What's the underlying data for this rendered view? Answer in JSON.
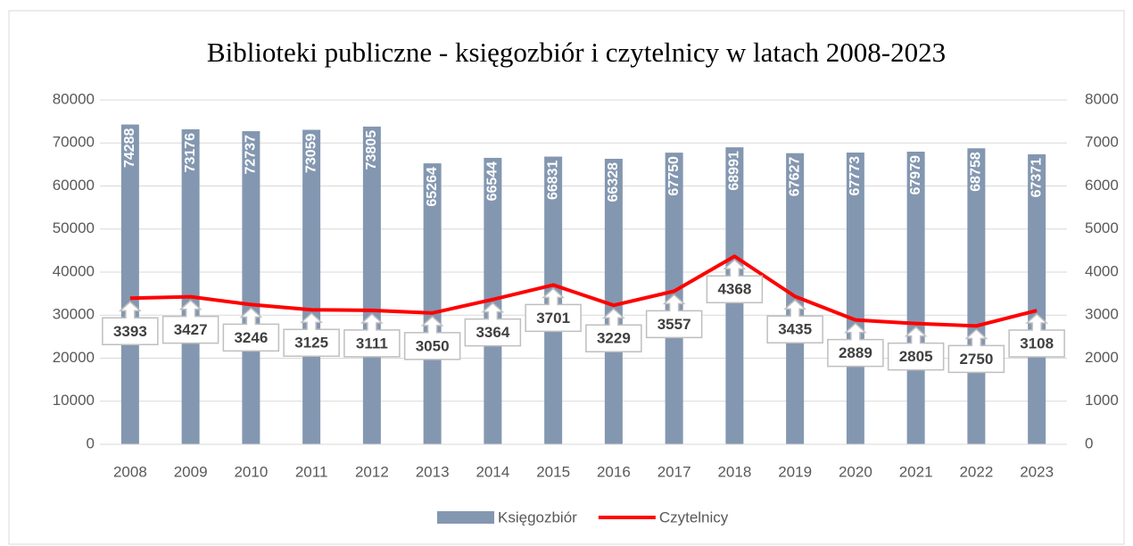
{
  "chart_data": {
    "type": "combo",
    "title": "Biblioteki publiczne - księgozbiór i czytelnicy  w latach 2008-2023",
    "categories": [
      "2008",
      "2009",
      "2010",
      "2011",
      "2012",
      "2013",
      "2014",
      "2015",
      "2016",
      "2017",
      "2018",
      "2019",
      "2020",
      "2021",
      "2022",
      "2023"
    ],
    "series": [
      {
        "name": "Księgozbiór",
        "type": "bar",
        "color": "#8497b0",
        "values": [
          74288,
          73176,
          72737,
          73059,
          73805,
          65264,
          66544,
          66831,
          66328,
          67750,
          68991,
          67627,
          67773,
          67979,
          68758,
          67371
        ]
      },
      {
        "name": "Czytelnicy",
        "type": "line",
        "color": "#ff0000",
        "axis": "y2",
        "values": [
          3393,
          3427,
          3246,
          3125,
          3111,
          3050,
          3364,
          3701,
          3229,
          3557,
          4368,
          3435,
          2889,
          2805,
          2750,
          3108
        ]
      }
    ],
    "ylim": [
      0,
      80000
    ],
    "yticks": [
      0,
      10000,
      20000,
      30000,
      40000,
      50000,
      60000,
      70000,
      80000
    ],
    "y2lim": [
      0,
      8000
    ],
    "y2ticks": [
      0,
      1000,
      2000,
      3000,
      4000,
      5000,
      6000,
      7000,
      8000
    ],
    "grid": true,
    "legend": "bottom"
  }
}
